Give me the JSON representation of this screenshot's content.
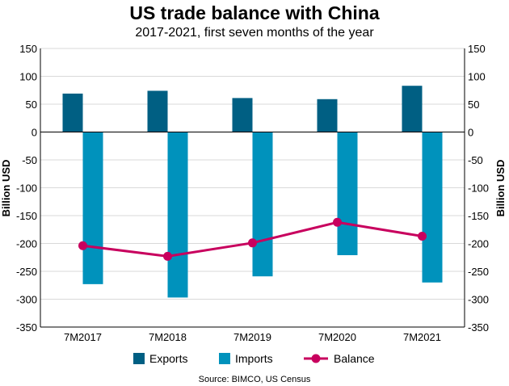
{
  "chart_data": {
    "type": "bar",
    "title": "US trade balance with China",
    "subtitle": "2017-2021, first seven months of the year",
    "ylabel": "Billion USD",
    "ylabel_right": "Billion USD",
    "categories": [
      "7M2017",
      "7M2018",
      "7M2019",
      "7M2020",
      "7M2021"
    ],
    "ylim": [
      -350,
      150
    ],
    "yticks": [
      150,
      100,
      50,
      0,
      -50,
      -100,
      -150,
      -200,
      -250,
      -300,
      -350
    ],
    "grid": true,
    "series": [
      {
        "name": "Exports",
        "type": "bar",
        "color": "#005f83",
        "values": [
          69,
          74,
          61,
          59,
          83
        ]
      },
      {
        "name": "Imports",
        "type": "bar",
        "color": "#0092bc",
        "values": [
          -273,
          -297,
          -259,
          -221,
          -270
        ]
      },
      {
        "name": "Balance",
        "type": "line",
        "color": "#c8005e",
        "values": [
          -204,
          -223,
          -199,
          -162,
          -187
        ]
      }
    ],
    "legend_position": "bottom",
    "source": "Source: BIMCO, US Census"
  }
}
